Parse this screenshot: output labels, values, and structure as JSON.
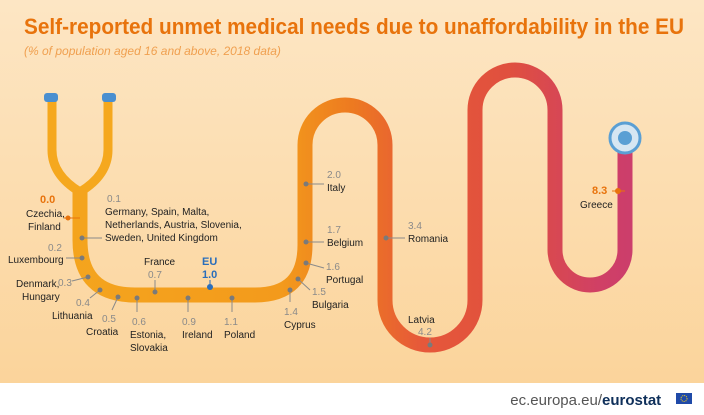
{
  "header": {
    "title": "Self-reported unmet medical needs due to unaffordability in the EU",
    "subtitle": "(% of population aged 16 and above, 2018 data)"
  },
  "points": [
    {
      "value": "0.0",
      "label": [
        "Czechia,",
        "Finland"
      ]
    },
    {
      "value": "0.1",
      "label": [
        "Germany, Spain, Malta,",
        "Netherlands, Austria, Slovenia,",
        "Sweden, United Kingdom"
      ]
    },
    {
      "value": "0.2",
      "label": [
        "Luxembourg"
      ]
    },
    {
      "value": "0.3",
      "label": [
        "Denmark,",
        "Hungary"
      ]
    },
    {
      "value": "0.4",
      "label": [
        "Lithuania"
      ]
    },
    {
      "value": "0.5",
      "label": [
        "Croatia"
      ]
    },
    {
      "value": "0.6",
      "label": [
        "Estonia,",
        "Slovakia"
      ]
    },
    {
      "value": "0.7",
      "label": [
        "France"
      ]
    },
    {
      "value": "1.0",
      "label": [
        "EU"
      ]
    },
    {
      "value": "0.9",
      "label": [
        "Ireland"
      ]
    },
    {
      "value": "1.1",
      "label": [
        "Poland"
      ]
    },
    {
      "value": "1.4",
      "label": [
        "Cyprus"
      ]
    },
    {
      "value": "1.5",
      "label": [
        "Bulgaria"
      ]
    },
    {
      "value": "1.6",
      "label": [
        "Portugal"
      ]
    },
    {
      "value": "1.7",
      "label": [
        "Belgium"
      ]
    },
    {
      "value": "2.0",
      "label": [
        "Italy"
      ]
    },
    {
      "value": "3.4",
      "label": [
        "Romania"
      ]
    },
    {
      "value": "4.2",
      "label": [
        "Latvia"
      ]
    },
    {
      "value": "8.3",
      "label": [
        "Greece"
      ]
    }
  ],
  "footer": {
    "url": "ec.europa.eu/",
    "brand": "eurostat"
  }
}
